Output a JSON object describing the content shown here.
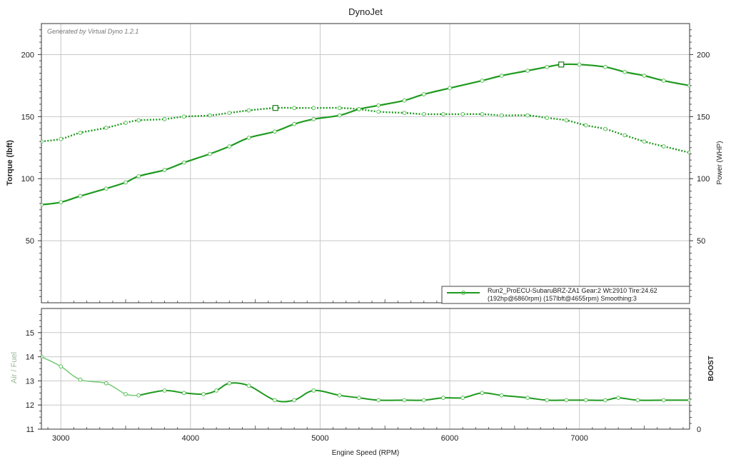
{
  "chart_data": [
    {
      "type": "line",
      "title": "DynoJet",
      "subtitle": "Generated by Virtual Dyno 1.2.1",
      "xlabel": "Engine Speed (RPM)",
      "ylabel_left": "Torque (lbft)",
      "ylabel_right": "Power (WHP)",
      "xlim": [
        2850,
        7850
      ],
      "ylim": [
        0,
        225
      ],
      "xticks": [
        "3000",
        "4000",
        "5000",
        "6000",
        "7000"
      ],
      "yticks_left": [
        "50",
        "100",
        "150",
        "200"
      ],
      "yticks_right": [
        "50",
        "100",
        "150",
        "200"
      ],
      "grid": true,
      "legend": {
        "placement": "bottom-right",
        "line1": "Run2_ProECU-SubaruBRZ-ZA1 Gear:2 Wt:2910 Tire:24.62",
        "line2": "(192hp@6860rpm) (157lbft@4655rpm) Smoothing:3"
      },
      "colors": {
        "power": "#1e9a1e",
        "torque": "#1e9a1e",
        "marker": "#58c058",
        "grid": "#c8c8c8"
      },
      "series": [
        {
          "style": "solid",
          "x": [
            2850,
            3000,
            3150,
            3350,
            3500,
            3600,
            3800,
            3950,
            4150,
            4300,
            4450,
            4650,
            4800,
            4950,
            5150,
            5300,
            5450,
            5650,
            5800,
            6000,
            6250,
            6400,
            6600,
            6750,
            6860,
            7000,
            7200,
            7350,
            7500,
            7650,
            7850
          ],
          "y": [
            79,
            81,
            86,
            92,
            97,
            102,
            107,
            113,
            120,
            126,
            133,
            138,
            144,
            148,
            151,
            156,
            159,
            163,
            168,
            173,
            179,
            183,
            187,
            190,
            192,
            192,
            190,
            186,
            183,
            179,
            175
          ]
        },
        {
          "style": "dotted",
          "x": [
            2850,
            3000,
            3150,
            3350,
            3500,
            3600,
            3800,
            3950,
            4150,
            4300,
            4450,
            4655,
            4800,
            4950,
            5150,
            5300,
            5450,
            5650,
            5800,
            5950,
            6100,
            6250,
            6400,
            6600,
            6750,
            6900,
            7050,
            7200,
            7350,
            7500,
            7650,
            7850
          ],
          "y": [
            130,
            132,
            137,
            141,
            145,
            147,
            148,
            150,
            151,
            153,
            155,
            157,
            157,
            157,
            157,
            156,
            154,
            153,
            152,
            152,
            152,
            152,
            151,
            151,
            149,
            147,
            143,
            140,
            135,
            130,
            126,
            121
          ]
        }
      ],
      "annotations": [
        {
          "x": 6860,
          "y": 192,
          "marker": "square"
        },
        {
          "x": 4655,
          "y": 157,
          "marker": "square"
        }
      ]
    },
    {
      "type": "line",
      "xlabel": "Engine Speed (RPM)",
      "ylabel_left": "Air / Fuel",
      "ylabel_right": "BOOST",
      "xlim": [
        2850,
        7850
      ],
      "ylim": [
        11,
        16
      ],
      "xticks": [
        "3000",
        "4000",
        "5000",
        "6000",
        "7000"
      ],
      "yticks_left": [
        "11",
        "12",
        "13",
        "14",
        "15"
      ],
      "yticks_right": [
        "0"
      ],
      "grid": true,
      "series": [
        {
          "style": "solid",
          "x": [
            2850,
            3000,
            3150,
            3350,
            3500,
            3600,
            3800,
            3950,
            4100,
            4200,
            4300,
            4450,
            4650,
            4800,
            4950,
            5150,
            5300,
            5450,
            5650,
            5800,
            5950,
            6100,
            6250,
            6400,
            6600,
            6750,
            6900,
            7050,
            7200,
            7300,
            7450,
            7650,
            7850
          ],
          "y": [
            14.0,
            13.6,
            13.05,
            12.9,
            12.45,
            12.4,
            12.6,
            12.5,
            12.45,
            12.6,
            12.9,
            12.8,
            12.2,
            12.2,
            12.6,
            12.4,
            12.3,
            12.2,
            12.2,
            12.2,
            12.3,
            12.3,
            12.5,
            12.4,
            12.3,
            12.2,
            12.2,
            12.2,
            12.2,
            12.3,
            12.2,
            12.2,
            12.2
          ]
        }
      ]
    }
  ]
}
